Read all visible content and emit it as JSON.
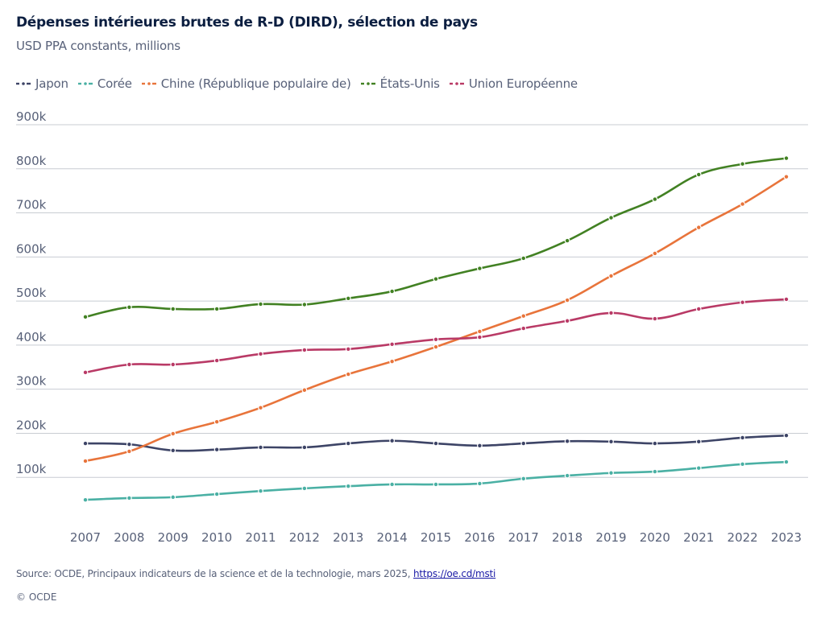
{
  "header": {
    "title": "Dépenses intérieures brutes de R-D (DIRD), sélection de pays",
    "subtitle": "USD PPA constants, millions"
  },
  "footer": {
    "source_prefix": "Source: OCDE, Principaux indicateurs de la science et de la technologie, mars 2025, ",
    "source_link": "https://oe.cd/msti",
    "copyright": "© OCDE"
  },
  "chart_data": {
    "type": "line",
    "title": "Dépenses intérieures brutes de R-D (DIRD), sélection de pays",
    "subtitle": "USD PPA constants, millions",
    "xlabel": "",
    "ylabel": "",
    "x": [
      "2007",
      "2008",
      "2009",
      "2010",
      "2011",
      "2012",
      "2013",
      "2014",
      "2015",
      "2016",
      "2017",
      "2018",
      "2019",
      "2020",
      "2021",
      "2022",
      "2023"
    ],
    "ylim": [
      0,
      900000
    ],
    "yticks": [
      100000,
      200000,
      300000,
      400000,
      500000,
      600000,
      700000,
      800000,
      900000
    ],
    "ytick_labels": [
      "100k",
      "200k",
      "300k",
      "400k",
      "500k",
      "600k",
      "700k",
      "800k",
      "900k"
    ],
    "grid": true,
    "legend_position": "top-left",
    "series": [
      {
        "name": "Japon",
        "color": "#3d4466",
        "values": [
          177000,
          175000,
          161000,
          163000,
          168000,
          168000,
          177000,
          183000,
          177000,
          172000,
          177000,
          182000,
          181000,
          177000,
          181000,
          190000,
          195000
        ]
      },
      {
        "name": "Corée",
        "color": "#4ab0a4",
        "values": [
          49000,
          53000,
          55000,
          62000,
          69000,
          75000,
          80000,
          84000,
          84000,
          86000,
          97000,
          104000,
          110000,
          113000,
          121000,
          130000,
          135000
        ]
      },
      {
        "name": "Chine (République populaire de)",
        "color": "#e8743b",
        "values": [
          137000,
          159000,
          199000,
          226000,
          258000,
          298000,
          334000,
          363000,
          396000,
          431000,
          466000,
          502000,
          557000,
          608000,
          667000,
          720000,
          782000
        ]
      },
      {
        "name": "États-Unis",
        "color": "#428123",
        "values": [
          464000,
          486000,
          482000,
          482000,
          493000,
          492000,
          506000,
          522000,
          550000,
          574000,
          597000,
          637000,
          689000,
          731000,
          787000,
          811000,
          824000
        ]
      },
      {
        "name": "Union Européenne",
        "color": "#b93a66",
        "values": [
          338000,
          356000,
          356000,
          365000,
          380000,
          389000,
          391000,
          402000,
          413000,
          418000,
          438000,
          455000,
          473000,
          460000,
          482000,
          497000,
          504000
        ]
      }
    ]
  }
}
